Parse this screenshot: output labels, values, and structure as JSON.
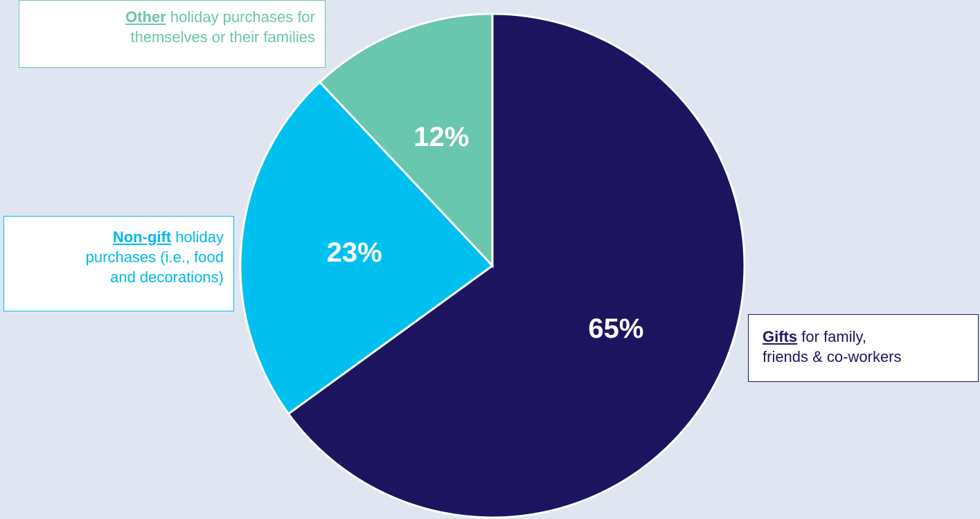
{
  "chart_data": {
    "type": "pie",
    "title": "",
    "slices": [
      {
        "name": "Gifts",
        "value": 65,
        "label": "65%",
        "color": "#1d1460",
        "callout_keyword": "Gifts",
        "callout_line1_rest": " for family,",
        "callout_line2": "friends & co-workers"
      },
      {
        "name": "Non-gift",
        "value": 23,
        "label": "23%",
        "color": "#00c0f0",
        "callout_keyword": "Non-gift",
        "callout_line1_rest": " holiday",
        "callout_line2": "purchases (i.e., food",
        "callout_line3": "and decorations)"
      },
      {
        "name": "Other",
        "value": 12,
        "label": "12%",
        "color": "#69c6af",
        "callout_keyword": "Other",
        "callout_line1_rest": " holiday purchases for",
        "callout_line2": "themselves or their families"
      }
    ],
    "start_angle": "12 o'clock",
    "direction": "clockwise"
  },
  "colors": {
    "background": "#dfe6f1",
    "slice_border": "#ffffff",
    "label_text": "#ffffff"
  }
}
